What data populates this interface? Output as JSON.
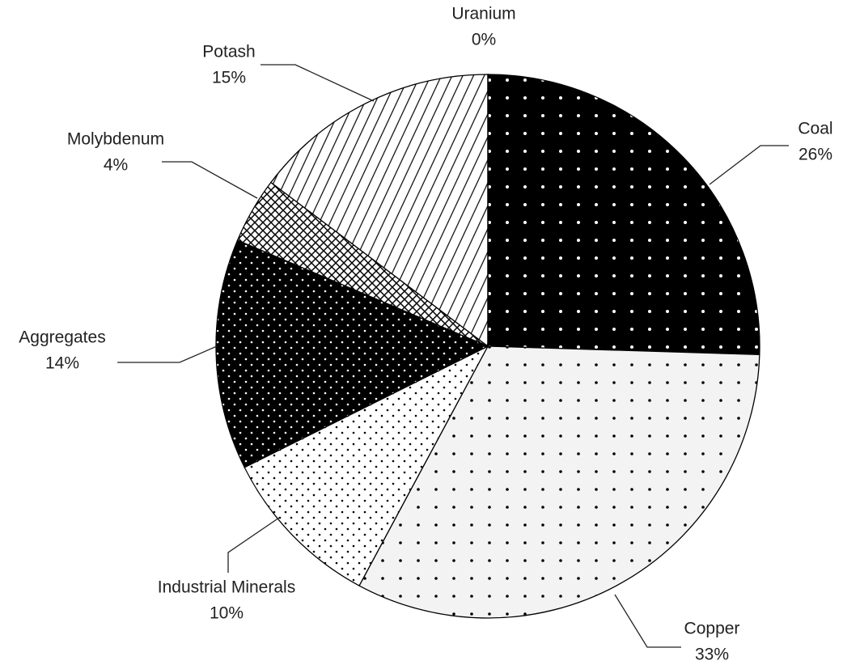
{
  "chart_data": {
    "type": "pie",
    "categories": [
      "Coal",
      "Copper",
      "Industrial Minerals",
      "Aggregates",
      "Molybdenum",
      "Potash",
      "Uranium"
    ],
    "values": [
      26,
      33,
      10,
      14,
      4,
      15,
      0
    ],
    "value_labels": [
      "26%",
      "33%",
      "10%",
      "14%",
      "4%",
      "15%",
      "0%"
    ]
  }
}
